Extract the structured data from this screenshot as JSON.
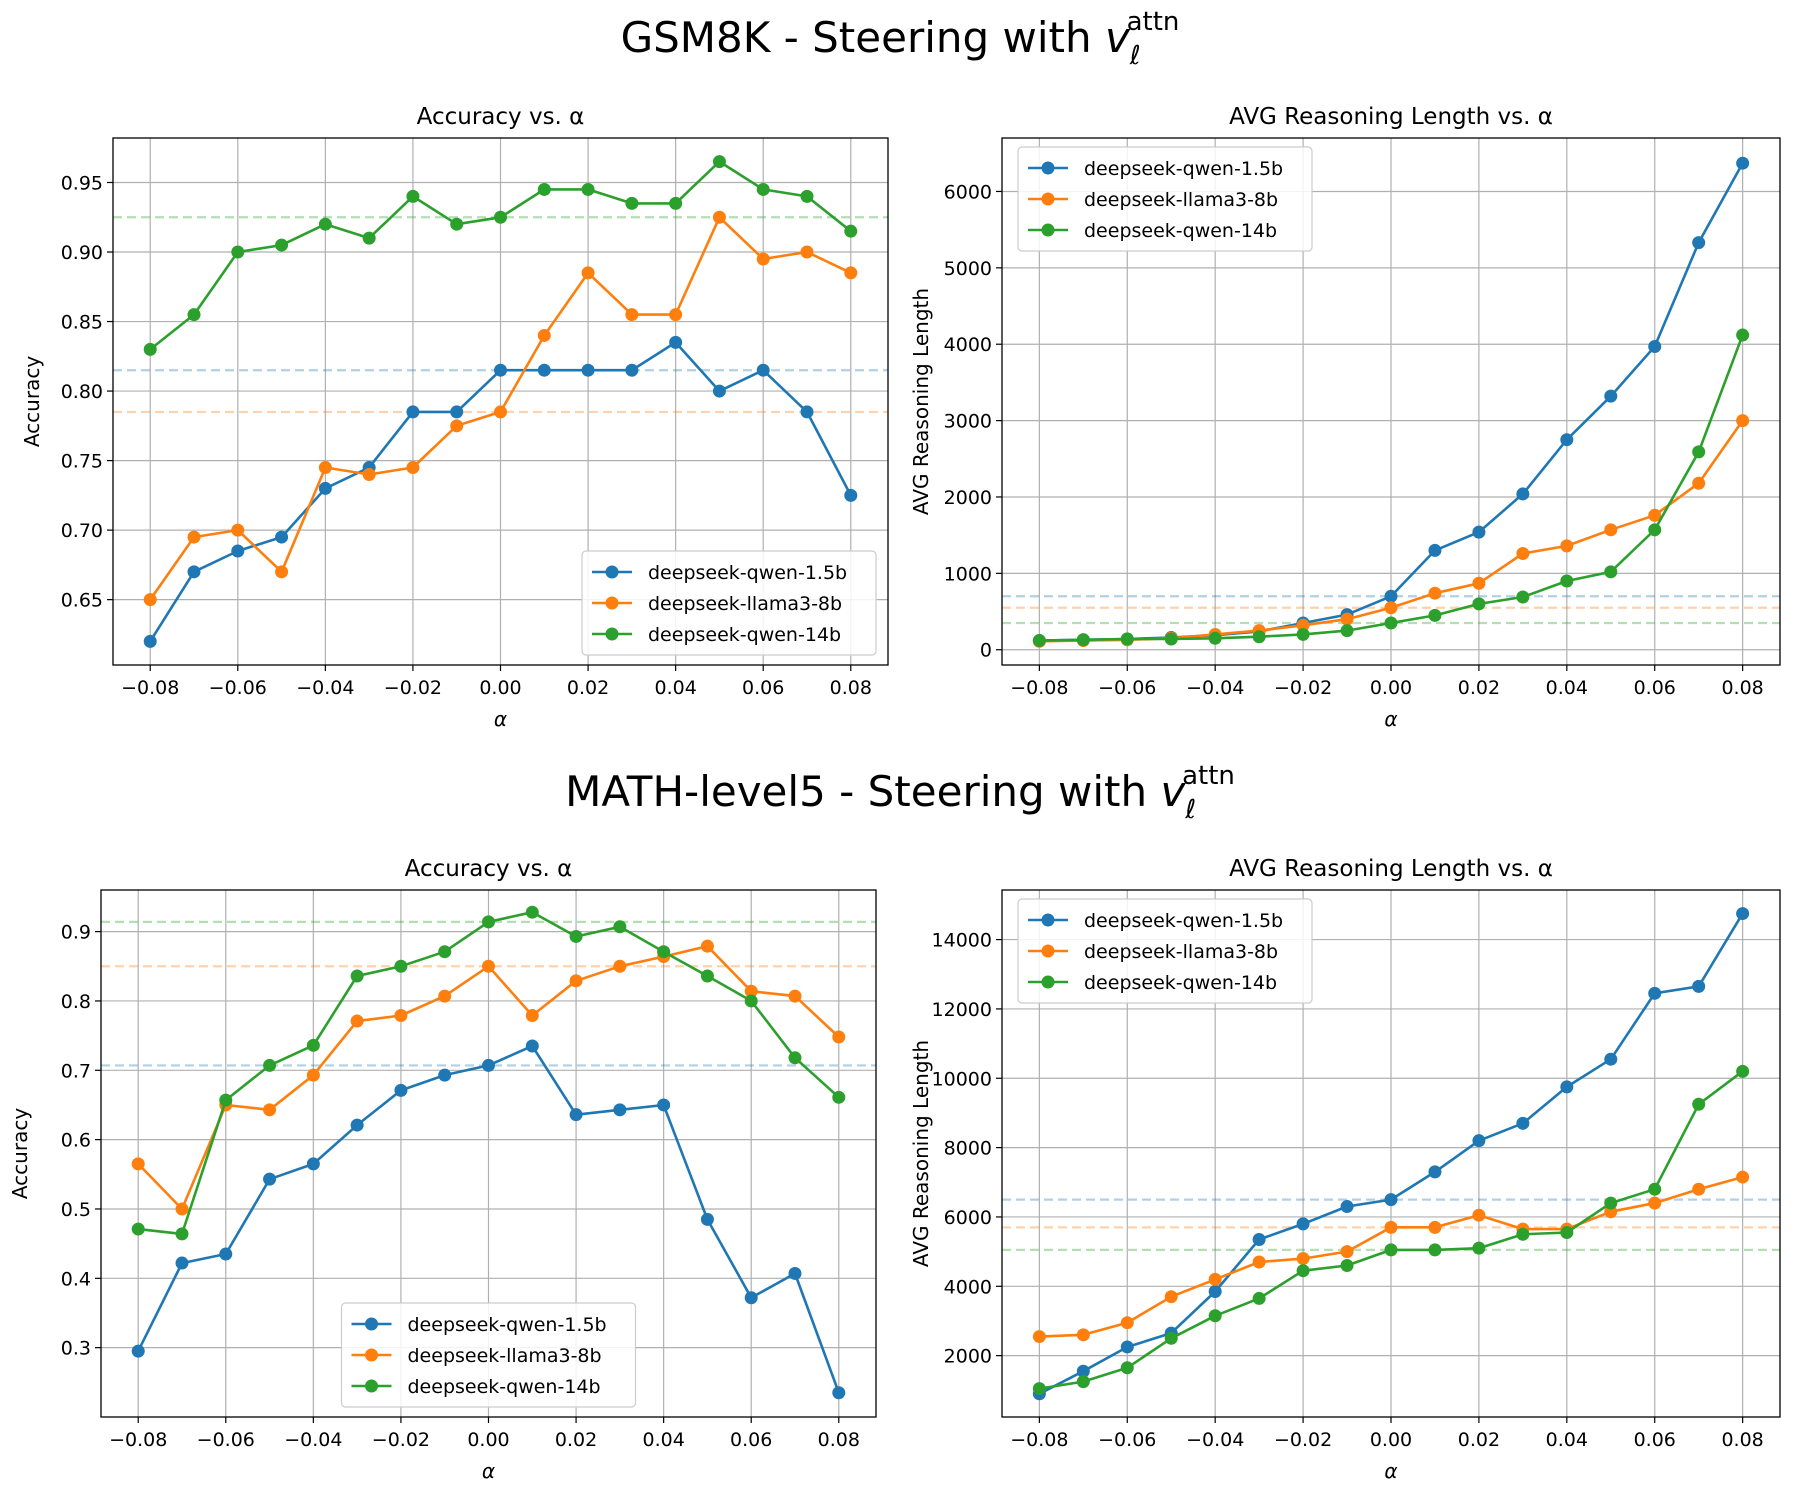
{
  "colors": {
    "qwen15": "#1f77b4",
    "llama8": "#ff7f0e",
    "qwen14": "#2ca02c"
  },
  "sections": [
    {
      "title_prefix": "GSM8K - Steering with ",
      "title_symbol": "v",
      "title_sub": "ℓ",
      "title_sup": "attn"
    },
    {
      "title_prefix": "MATH-level5 - Steering with ",
      "title_symbol": "v",
      "title_sub": "ℓ",
      "title_sup": "attn"
    }
  ],
  "chart_data": [
    {
      "type": "line",
      "section": 0,
      "title": "Accuracy vs. α",
      "xlabel": "α",
      "ylabel": "Accuracy",
      "grid": true,
      "legend_position": "lower-right",
      "x": [
        -0.08,
        -0.07,
        -0.06,
        -0.05,
        -0.04,
        -0.03,
        -0.02,
        -0.01,
        0.0,
        0.01,
        0.02,
        0.03,
        0.04,
        0.05,
        0.06,
        0.07,
        0.08
      ],
      "xlim": [
        -0.0885,
        0.0885
      ],
      "xticks": [
        -0.08,
        -0.06,
        -0.04,
        -0.02,
        0.0,
        0.02,
        0.04,
        0.06,
        0.08
      ],
      "xtick_labels": [
        "−0.08",
        "−0.06",
        "−0.04",
        "−0.02",
        "0.00",
        "0.02",
        "0.04",
        "0.06",
        "0.08"
      ],
      "ylim": [
        0.603,
        0.982
      ],
      "yticks": [
        0.65,
        0.7,
        0.75,
        0.8,
        0.85,
        0.9,
        0.95
      ],
      "ytick_labels": [
        "0.65",
        "0.70",
        "0.75",
        "0.80",
        "0.85",
        "0.90",
        "0.95"
      ],
      "series": [
        {
          "name": "deepseek-qwen-1.5b",
          "color_key": "qwen15",
          "baseline": 0.815,
          "values": [
            0.62,
            0.67,
            0.685,
            0.695,
            0.73,
            0.745,
            0.785,
            0.785,
            0.815,
            0.815,
            0.815,
            0.815,
            0.835,
            0.8,
            0.815,
            0.785,
            0.725
          ]
        },
        {
          "name": "deepseek-llama3-8b",
          "color_key": "llama8",
          "baseline": 0.785,
          "values": [
            0.65,
            0.695,
            0.7,
            0.67,
            0.745,
            0.74,
            0.745,
            0.775,
            0.785,
            0.84,
            0.885,
            0.855,
            0.855,
            0.925,
            0.895,
            0.9,
            0.885
          ]
        },
        {
          "name": "deepseek-qwen-14b",
          "color_key": "qwen14",
          "baseline": 0.925,
          "values": [
            0.83,
            0.855,
            0.9,
            0.905,
            0.92,
            0.91,
            0.94,
            0.92,
            0.925,
            0.945,
            0.945,
            0.935,
            0.935,
            0.965,
            0.945,
            0.94,
            0.915
          ]
        }
      ]
    },
    {
      "type": "line",
      "section": 0,
      "title": "AVG Reasoning Length vs. α",
      "xlabel": "α",
      "ylabel": "AVG Reasoning Length",
      "grid": true,
      "legend_position": "upper-left",
      "x": [
        -0.08,
        -0.07,
        -0.06,
        -0.05,
        -0.04,
        -0.03,
        -0.02,
        -0.01,
        0.0,
        0.01,
        0.02,
        0.03,
        0.04,
        0.05,
        0.06,
        0.07,
        0.08
      ],
      "xlim": [
        -0.0885,
        0.0885
      ],
      "xticks": [
        -0.08,
        -0.06,
        -0.04,
        -0.02,
        0.0,
        0.02,
        0.04,
        0.06,
        0.08
      ],
      "xtick_labels": [
        "−0.08",
        "−0.06",
        "−0.04",
        "−0.02",
        "0.00",
        "0.02",
        "0.04",
        "0.06",
        "0.08"
      ],
      "ylim": [
        -200,
        6700
      ],
      "yticks": [
        0,
        1000,
        2000,
        3000,
        4000,
        5000,
        6000
      ],
      "ytick_labels": [
        "0",
        "1000",
        "2000",
        "3000",
        "4000",
        "5000",
        "6000"
      ],
      "series": [
        {
          "name": "deepseek-qwen-1.5b",
          "color_key": "qwen15",
          "baseline": 700,
          "values": [
            120,
            130,
            140,
            160,
            190,
            240,
            350,
            460,
            700,
            1300,
            1540,
            2040,
            2750,
            3320,
            3970,
            5330,
            6370
          ]
        },
        {
          "name": "deepseek-llama3-8b",
          "color_key": "llama8",
          "baseline": 550,
          "values": [
            110,
            120,
            130,
            150,
            200,
            250,
            320,
            400,
            550,
            740,
            870,
            1260,
            1360,
            1570,
            1760,
            2180,
            3000
          ]
        },
        {
          "name": "deepseek-qwen-14b",
          "color_key": "qwen14",
          "baseline": 350,
          "values": [
            120,
            130,
            140,
            140,
            150,
            170,
            200,
            250,
            350,
            450,
            600,
            690,
            900,
            1020,
            1570,
            2590,
            4120
          ]
        }
      ]
    },
    {
      "type": "line",
      "section": 1,
      "title": "Accuracy vs. α",
      "xlabel": "α",
      "ylabel": "Accuracy",
      "grid": true,
      "legend_position": "lower-center",
      "x": [
        -0.08,
        -0.07,
        -0.06,
        -0.05,
        -0.04,
        -0.03,
        -0.02,
        -0.01,
        0.0,
        0.01,
        0.02,
        0.03,
        0.04,
        0.05,
        0.06,
        0.07,
        0.08
      ],
      "xlim": [
        -0.0885,
        0.0885
      ],
      "xticks": [
        -0.08,
        -0.06,
        -0.04,
        -0.02,
        0.0,
        0.02,
        0.04,
        0.06,
        0.08
      ],
      "xtick_labels": [
        "−0.08",
        "−0.06",
        "−0.04",
        "−0.02",
        "0.00",
        "0.02",
        "0.04",
        "0.06",
        "0.08"
      ],
      "ylim": [
        0.2,
        0.96
      ],
      "yticks": [
        0.3,
        0.4,
        0.5,
        0.6,
        0.7,
        0.8,
        0.9
      ],
      "ytick_labels": [
        "0.3",
        "0.4",
        "0.5",
        "0.6",
        "0.7",
        "0.8",
        "0.9"
      ],
      "series": [
        {
          "name": "deepseek-qwen-1.5b",
          "color_key": "qwen15",
          "baseline": 0.707,
          "values": [
            0.295,
            0.422,
            0.435,
            0.543,
            0.565,
            0.621,
            0.671,
            0.693,
            0.707,
            0.735,
            0.636,
            0.643,
            0.65,
            0.485,
            0.372,
            0.407,
            0.235
          ]
        },
        {
          "name": "deepseek-llama3-8b",
          "color_key": "llama8",
          "baseline": 0.85,
          "values": [
            0.565,
            0.5,
            0.65,
            0.643,
            0.693,
            0.771,
            0.779,
            0.807,
            0.85,
            0.779,
            0.829,
            0.85,
            0.864,
            0.879,
            0.814,
            0.807,
            0.748
          ]
        },
        {
          "name": "deepseek-qwen-14b",
          "color_key": "qwen14",
          "baseline": 0.914,
          "values": [
            0.471,
            0.464,
            0.657,
            0.707,
            0.736,
            0.836,
            0.85,
            0.871,
            0.914,
            0.928,
            0.893,
            0.907,
            0.871,
            0.836,
            0.8,
            0.718,
            0.661
          ]
        }
      ]
    },
    {
      "type": "line",
      "section": 1,
      "title": "AVG Reasoning Length vs. α",
      "xlabel": "α",
      "ylabel": "AVG Reasoning Length",
      "grid": true,
      "legend_position": "upper-left",
      "x": [
        -0.08,
        -0.07,
        -0.06,
        -0.05,
        -0.04,
        -0.03,
        -0.02,
        -0.01,
        0.0,
        0.01,
        0.02,
        0.03,
        0.04,
        0.05,
        0.06,
        0.07,
        0.08
      ],
      "xlim": [
        -0.0885,
        0.0885
      ],
      "xticks": [
        -0.08,
        -0.06,
        -0.04,
        -0.02,
        0.0,
        0.02,
        0.04,
        0.06,
        0.08
      ],
      "xtick_labels": [
        "−0.08",
        "−0.06",
        "−0.04",
        "−0.02",
        "0.00",
        "0.02",
        "0.04",
        "0.06",
        "0.08"
      ],
      "ylim": [
        230,
        15430
      ],
      "yticks": [
        2000,
        4000,
        6000,
        8000,
        10000,
        12000,
        14000
      ],
      "ytick_labels": [
        "2000",
        "4000",
        "6000",
        "8000",
        "10000",
        "12000",
        "14000"
      ],
      "series": [
        {
          "name": "deepseek-qwen-1.5b",
          "color_key": "qwen15",
          "baseline": 6500,
          "values": [
            900,
            1550,
            2250,
            2650,
            3850,
            5350,
            5800,
            6300,
            6500,
            7300,
            8200,
            8700,
            9750,
            10550,
            12450,
            12650,
            14750
          ]
        },
        {
          "name": "deepseek-llama3-8b",
          "color_key": "llama8",
          "baseline": 5700,
          "values": [
            2550,
            2600,
            2950,
            3700,
            4200,
            4700,
            4800,
            5000,
            5700,
            5700,
            6050,
            5650,
            5650,
            6150,
            6400,
            6800,
            7150
          ]
        },
        {
          "name": "deepseek-qwen-14b",
          "color_key": "qwen14",
          "baseline": 5050,
          "values": [
            1050,
            1250,
            1650,
            2500,
            3150,
            3650,
            4450,
            4600,
            5050,
            5050,
            5100,
            5500,
            5550,
            6400,
            6800,
            9250,
            10200
          ]
        }
      ]
    }
  ]
}
